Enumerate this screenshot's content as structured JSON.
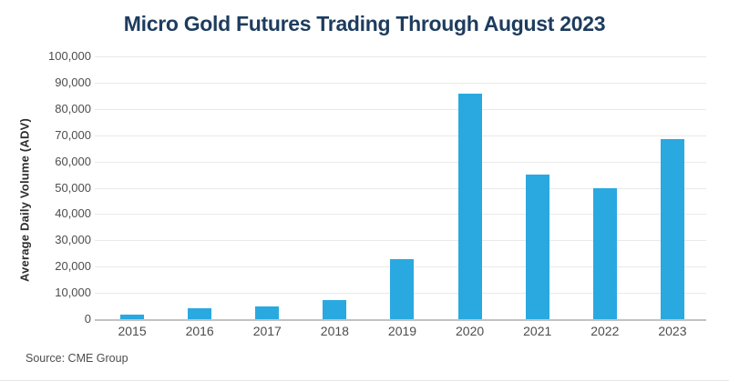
{
  "source": "Source: CME Group",
  "colors": {
    "title": "#1d3c5e",
    "bar": "#29a9e0",
    "gridline": "#e9e9e9",
    "axis_line": "#c2c2c2",
    "tick_text": "#4d4d4d",
    "axis_label_text": "#2d2d2d"
  },
  "chart_data": {
    "type": "bar",
    "title": "Micro Gold Futures Trading Through August 2023",
    "categories": [
      "2015",
      "2016",
      "2017",
      "2018",
      "2019",
      "2020",
      "2021",
      "2022",
      "2023"
    ],
    "values": [
      1800,
      4000,
      4700,
      7300,
      22700,
      85700,
      55000,
      49800,
      68500
    ],
    "xlabel": "",
    "ylabel": "Average Daily Volume (ADV)",
    "ylim": [
      0,
      100000
    ],
    "ytick_step": 10000,
    "ytick_labels": [
      "0",
      "10,000",
      "20,000",
      "30,000",
      "40,000",
      "50,000",
      "60,000",
      "70,000",
      "80,000",
      "90,000",
      "100,000"
    ],
    "grid": "horizontal",
    "legend": "none",
    "bar_color": "#29a9e0"
  }
}
